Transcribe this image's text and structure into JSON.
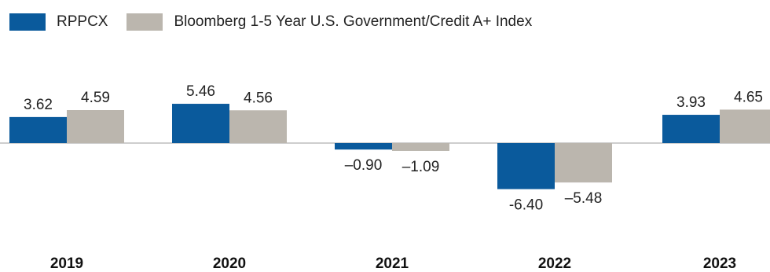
{
  "chart_data": {
    "type": "bar",
    "title": "",
    "xlabel": "",
    "ylabel": "",
    "categories": [
      "2019",
      "2020",
      "2021",
      "2022",
      "2023"
    ],
    "series": [
      {
        "name": "RPPCX",
        "color": "#0a5a9c",
        "values": [
          3.62,
          5.46,
          -0.9,
          -6.4,
          3.93
        ]
      },
      {
        "name": "Bloomberg 1-5 Year U.S. Government/Credit A+ Index",
        "color": "#bbb6ae",
        "values": [
          4.59,
          4.56,
          -1.09,
          -5.48,
          4.65
        ]
      }
    ],
    "value_labels": [
      [
        "3.62",
        "5.46",
        "–0.90",
        "-6.40",
        "3.93"
      ],
      [
        "4.59",
        "4.56",
        "–1.09",
        "–5.48",
        "4.65"
      ]
    ],
    "legend_position": "top-left",
    "grid": false
  }
}
